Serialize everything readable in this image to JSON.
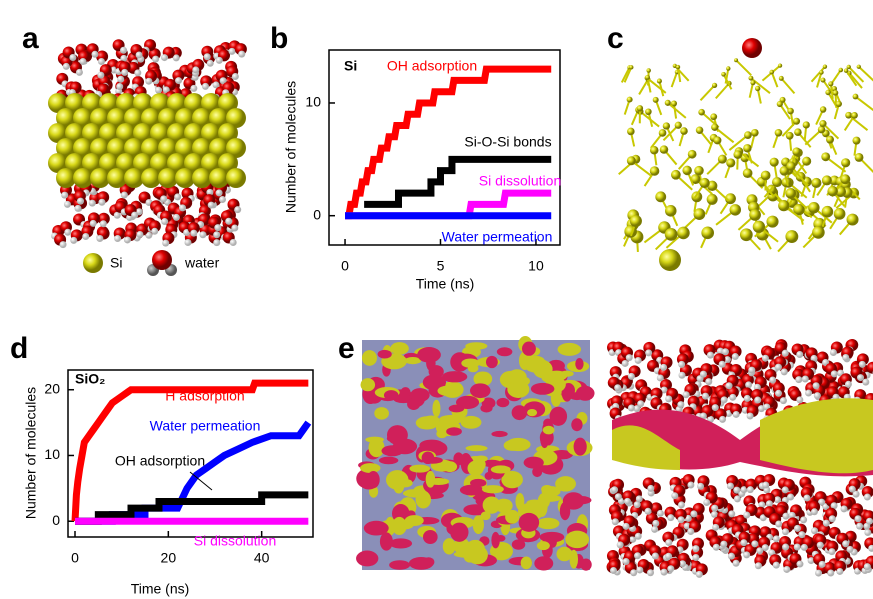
{
  "panel_labels": [
    "a",
    "b",
    "c",
    "d",
    "e"
  ],
  "panel_a_legend": [
    "Si",
    "water"
  ],
  "chart_data": [
    {
      "type": "line",
      "annotation": "Si",
      "xlabel": "Time (ns)",
      "ylabel": "Number of molecules",
      "xlim": [
        -0.84,
        11.26
      ],
      "ylim": [
        -2.6,
        14.7
      ],
      "xticks": [
        0,
        5,
        10
      ],
      "yticks": [
        0,
        10
      ],
      "series": [
        {
          "name": "OH adsorption",
          "color": "#ff0000",
          "x": [
            0,
            0.2,
            0.3,
            0.5,
            0.6,
            0.8,
            0.9,
            1.1,
            1.2,
            1.4,
            1.5,
            1.8,
            1.9,
            2.2,
            2.3,
            2.6,
            2.7,
            3.2,
            3.3,
            3.8,
            3.9,
            4.6,
            4.7,
            5.6,
            5.7,
            7.3,
            7.4,
            10.8
          ],
          "values": [
            0,
            0,
            1,
            1,
            2,
            2,
            3,
            3,
            4,
            4,
            5,
            5,
            6,
            6,
            7,
            7,
            8,
            8,
            9,
            9,
            10,
            10,
            11,
            11,
            12,
            12,
            13,
            13
          ]
        },
        {
          "name": "Si-O-Si bonds",
          "color": "#000000",
          "x": [
            1,
            2.8,
            2.8,
            4.5,
            4.5,
            5.0,
            5.0,
            5.6,
            5.6,
            10.8
          ],
          "values": [
            1,
            1,
            2,
            2,
            3,
            3,
            4,
            4,
            5,
            5
          ]
        },
        {
          "name": "Si dissolution",
          "color": "#ff00ff",
          "x": [
            0,
            6.5,
            6.6,
            8.3,
            8.4,
            10.8
          ],
          "values": [
            0,
            0,
            1,
            1,
            2,
            2
          ]
        },
        {
          "name": "Water permeation",
          "color": "#0000ff",
          "x": [
            0,
            10.8
          ],
          "values": [
            0,
            0
          ]
        }
      ]
    },
    {
      "type": "line",
      "annotation": "SiO₂",
      "xlabel": "Time (ns)",
      "ylabel": "Number of molecules",
      "xlim": [
        -1.5,
        51
      ],
      "ylim": [
        -2.4,
        23
      ],
      "xticks": [
        0,
        20,
        40
      ],
      "yticks": [
        0,
        10,
        20
      ],
      "series": [
        {
          "name": "H adsorption",
          "color": "#ff0000",
          "x": [
            0,
            0.3,
            0.6,
            1,
            1.5,
            2,
            3,
            4,
            5,
            6,
            7,
            8,
            10,
            12,
            38,
            38.5,
            50
          ],
          "values": [
            0,
            4,
            6,
            8,
            10,
            12,
            13,
            14,
            15,
            16,
            17,
            18,
            19,
            20,
            20,
            21,
            21
          ]
        },
        {
          "name": "Water permeation",
          "color": "#0000ff",
          "x": [
            0,
            8,
            8,
            15,
            15,
            22,
            24,
            26,
            28,
            30,
            32,
            35,
            38,
            42,
            48,
            49,
            50
          ],
          "values": [
            0,
            0,
            1,
            1,
            2,
            2,
            5,
            7,
            8,
            9,
            10,
            11,
            12,
            13,
            13,
            14,
            15
          ]
        },
        {
          "name": "OH adsorption",
          "color": "#000000",
          "x": [
            0,
            5,
            5,
            12,
            12,
            18,
            18,
            40,
            40,
            50
          ],
          "values": [
            0,
            0,
            1,
            1,
            2,
            2,
            3,
            3,
            4,
            4
          ]
        },
        {
          "name": "Si dissolution",
          "color": "#ff00ff",
          "x": [
            0,
            50
          ],
          "values": [
            0,
            0
          ]
        }
      ]
    }
  ]
}
